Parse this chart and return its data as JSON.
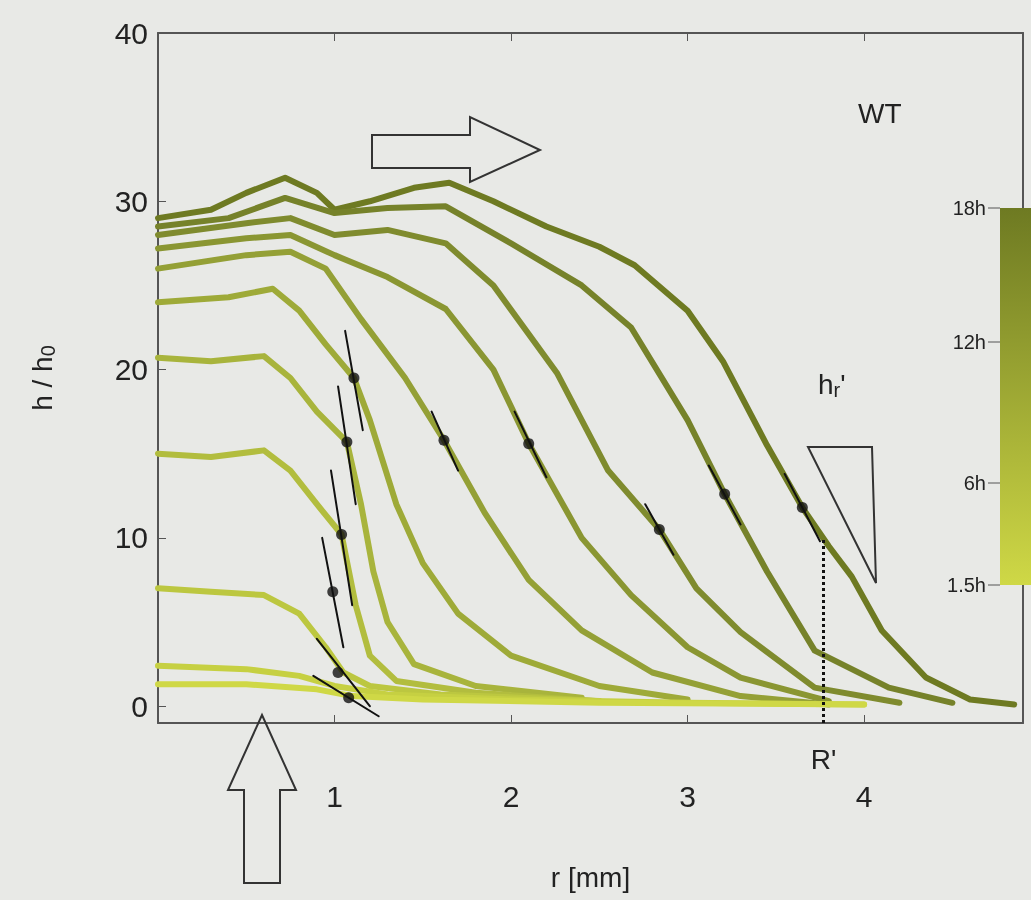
{
  "chart_data": {
    "type": "line",
    "xlabel": "r [mm]",
    "ylabel": "h / h$_{0}$",
    "xlim": [
      0,
      4.9
    ],
    "ylim": [
      -1,
      40
    ],
    "xticks": [
      1,
      2,
      3,
      4
    ],
    "yticks": [
      0,
      10,
      20,
      30,
      40
    ],
    "grid": false,
    "marker": "none",
    "line_style": "solid",
    "annotations": [
      "WT",
      "h$_{r}$'",
      "18h",
      "12h",
      "6h",
      "1.5h"
    ],
    "ref_lines": [
      {
        "axis": "x",
        "value": 3.77,
        "label": "R'",
        "line_style": "dotted",
        "color": "#111111"
      }
    ],
    "series": [
      {
        "color": "#6e7a22",
        "x": [
          0,
          0.3,
          0.5,
          0.72,
          0.9,
          1.0,
          1.2,
          1.45,
          1.65,
          1.9,
          2.2,
          2.5,
          2.7,
          3.0,
          3.2,
          3.45,
          3.65,
          3.8,
          3.93,
          4.1,
          4.35,
          4.6,
          4.85
        ],
        "values": [
          29,
          29.5,
          30.5,
          31.4,
          30.5,
          29.5,
          30,
          30.8,
          31.1,
          30,
          28.5,
          27.3,
          26.2,
          23.5,
          20.5,
          15.5,
          11.8,
          9.5,
          7.7,
          4.5,
          1.7,
          0.4,
          0.1
        ]
      },
      {
        "color": "#76822a",
        "x": [
          0,
          0.4,
          0.72,
          1.0,
          1.3,
          1.63,
          2.0,
          2.4,
          2.68,
          3.0,
          3.21,
          3.45,
          3.72,
          4.14,
          4.5
        ],
        "values": [
          28.5,
          29,
          30.2,
          29.3,
          29.6,
          29.7,
          27.5,
          25,
          22.5,
          17,
          12.6,
          8,
          3.3,
          1.1,
          0.2
        ]
      },
      {
        "color": "#7f8b2e",
        "x": [
          0,
          0.5,
          0.75,
          1.0,
          1.3,
          1.63,
          1.9,
          2.26,
          2.55,
          2.84,
          3.05,
          3.3,
          3.72,
          4.2
        ],
        "values": [
          28,
          28.7,
          29,
          28,
          28.3,
          27.5,
          25,
          19.8,
          14,
          10.5,
          7,
          4.4,
          1.1,
          0.2
        ]
      },
      {
        "color": "#8a9632",
        "x": [
          0,
          0.5,
          0.75,
          1.0,
          1.3,
          1.63,
          1.9,
          2.1,
          2.4,
          2.68,
          3.0,
          3.3,
          3.8
        ],
        "values": [
          27.2,
          27.8,
          28,
          26.8,
          25.5,
          23.6,
          20,
          15.6,
          10,
          6.6,
          3.5,
          1.7,
          0.3
        ]
      },
      {
        "color": "#94a036",
        "x": [
          0,
          0.5,
          0.75,
          0.95,
          1.15,
          1.4,
          1.62,
          1.85,
          2.1,
          2.4,
          2.8,
          3.3,
          3.8
        ],
        "values": [
          26,
          26.8,
          27,
          26,
          23,
          19.5,
          15.8,
          11.5,
          7.5,
          4.5,
          2,
          0.6,
          0.1
        ]
      },
      {
        "color": "#9eaa38",
        "x": [
          0,
          0.4,
          0.65,
          0.8,
          0.95,
          1.11,
          1.2,
          1.35,
          1.5,
          1.7,
          2.0,
          2.5,
          3.0
        ],
        "values": [
          24,
          24.3,
          24.8,
          23.5,
          21.5,
          19.5,
          17,
          12,
          8.5,
          5.5,
          3,
          1.2,
          0.4
        ]
      },
      {
        "color": "#a8b43c",
        "x": [
          0,
          0.3,
          0.6,
          0.75,
          0.9,
          1.07,
          1.15,
          1.22,
          1.3,
          1.45,
          1.8,
          2.4
        ],
        "values": [
          20.7,
          20.5,
          20.8,
          19.5,
          17.5,
          15.7,
          12,
          8,
          5,
          2.5,
          1.2,
          0.5
        ]
      },
      {
        "color": "#b2bd3e",
        "x": [
          0,
          0.3,
          0.6,
          0.75,
          0.9,
          1.04,
          1.12,
          1.2,
          1.35,
          1.8,
          2.5
        ],
        "values": [
          15,
          14.8,
          15.2,
          14,
          12,
          10.2,
          6,
          3,
          1.5,
          0.8,
          0.3
        ]
      },
      {
        "color": "#bcc740",
        "x": [
          0,
          0.3,
          0.6,
          0.8,
          0.95,
          1.05,
          1.2,
          1.6,
          2.5
        ],
        "values": [
          7,
          6.8,
          6.6,
          5.5,
          3.5,
          2,
          1.2,
          0.7,
          0.3
        ]
      },
      {
        "color": "#c6d042",
        "x": [
          0,
          0.5,
          0.8,
          1.0,
          1.3,
          2.0,
          3.0,
          4.0
        ],
        "values": [
          2.4,
          2.2,
          1.8,
          1.2,
          0.7,
          0.4,
          0.2,
          0.1
        ]
      },
      {
        "color": "#cfd846",
        "x": [
          0,
          0.5,
          0.9,
          1.1,
          1.5,
          2.5,
          4.0
        ],
        "values": [
          1.3,
          1.3,
          1.0,
          0.6,
          0.4,
          0.2,
          0.1
        ]
      },
      {
        "type": "line",
        "color": "#111111",
        "x": [
          3.55,
          3.75,
          null,
          3.12,
          3.3,
          null,
          2.76,
          2.92,
          null,
          2.02,
          2.2,
          null,
          1.55,
          1.7,
          null,
          1.06,
          1.16,
          null,
          1.02,
          1.12,
          null,
          0.98,
          1.1,
          null,
          0.93,
          1.05,
          null,
          0.9,
          1.2,
          null,
          0.88,
          1.25
        ],
        "values": [
          13.8,
          9.8,
          null,
          14.3,
          10.8,
          null,
          12,
          9,
          null,
          17.5,
          13.6,
          null,
          17.5,
          14,
          null,
          22.3,
          16.4,
          null,
          19,
          12,
          null,
          14,
          6,
          null,
          10,
          3.5,
          null,
          4,
          0,
          null,
          1.8,
          -0.6
        ]
      },
      {
        "type": "scatter",
        "marker": "circle",
        "color": "#111111",
        "x": [
          3.65,
          3.21,
          2.84,
          2.1,
          1.62,
          1.11,
          1.07,
          1.04,
          0.99,
          1.02,
          1.08
        ],
        "values": [
          11.8,
          12.6,
          10.5,
          15.6,
          15.8,
          19.5,
          15.7,
          10.2,
          6.8,
          2.0,
          0.5
        ]
      }
    ]
  }
}
